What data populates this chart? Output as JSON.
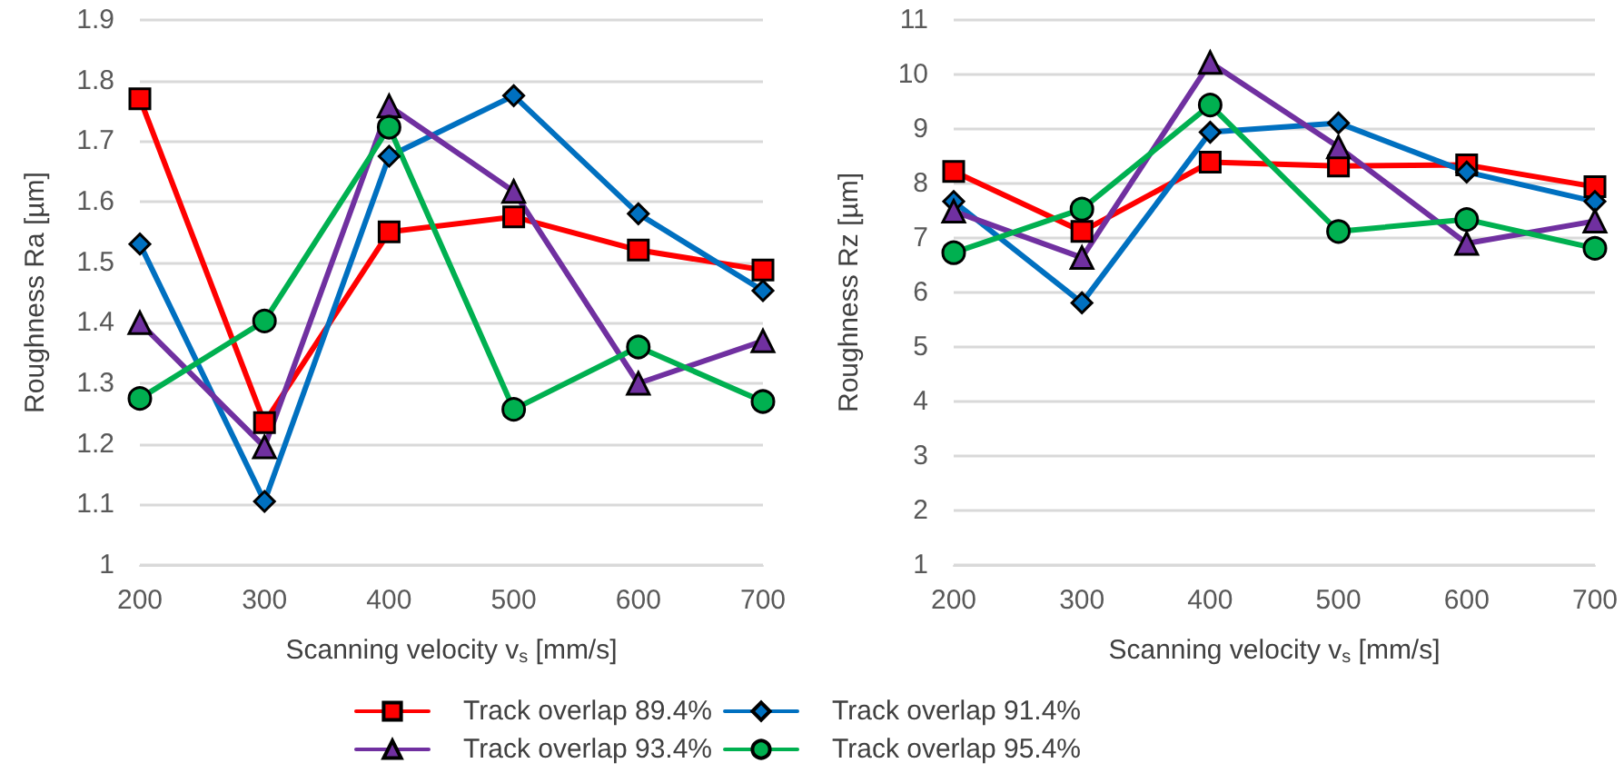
{
  "chart_data": [
    {
      "type": "line",
      "xlabel": "Scanning velocity v$_{s}$ [mm/s]",
      "ylabel": "Roughness Ra [µm]",
      "categories": [
        "200",
        "300",
        "400",
        "500",
        "600",
        "700"
      ],
      "ylim": [
        1,
        1.9
      ],
      "yticks": [
        1,
        1.1,
        1.2,
        1.3,
        1.4,
        1.5,
        1.6,
        1.7,
        1.8,
        1.9
      ],
      "grid": "y",
      "legend": "bottom",
      "line_style": "solid",
      "series": [
        {
          "name": "Track overlap 89.4%",
          "color": "#ff0000",
          "marker": "square",
          "values": [
            1.77,
            1.235,
            1.55,
            1.575,
            1.52,
            1.487
          ]
        },
        {
          "name": "Track overlap 91.4%",
          "color": "#0070c0",
          "marker": "diamond",
          "values": [
            1.53,
            1.105,
            1.675,
            1.775,
            1.58,
            1.453
          ]
        },
        {
          "name": "Track overlap 93.4%",
          "color": "#7030a0",
          "marker": "triangle",
          "values": [
            1.4,
            1.195,
            1.758,
            1.617,
            1.3,
            1.37
          ]
        },
        {
          "name": "Track overlap 95.4%",
          "color": "#00b050",
          "marker": "circle",
          "values": [
            1.275,
            1.403,
            1.723,
            1.257,
            1.36,
            1.27
          ]
        }
      ]
    },
    {
      "type": "line",
      "xlabel": "Scanning velocity v$_{s}$ [mm/s]",
      "ylabel": "Roughness Rz [µm]",
      "categories": [
        "200",
        "300",
        "400",
        "500",
        "600",
        "700"
      ],
      "ylim": [
        1,
        11
      ],
      "yticks": [
        1,
        2,
        3,
        4,
        5,
        6,
        7,
        8,
        9,
        10,
        11
      ],
      "grid": "y",
      "line_style": "solid",
      "series": [
        {
          "color": "#ff0000",
          "marker": "square",
          "values": [
            8.22,
            7.12,
            8.39,
            8.32,
            8.34,
            7.94
          ]
        },
        {
          "color": "#0070c0",
          "marker": "diamond",
          "values": [
            7.67,
            5.81,
            8.94,
            9.11,
            8.21,
            7.67
          ]
        },
        {
          "color": "#7030a0",
          "marker": "triangle",
          "values": [
            7.49,
            6.64,
            10.22,
            8.67,
            6.9,
            7.31
          ]
        },
        {
          "color": "#00b050",
          "marker": "circle",
          "values": [
            6.73,
            7.53,
            9.44,
            7.12,
            7.34,
            6.81
          ]
        }
      ]
    }
  ]
}
